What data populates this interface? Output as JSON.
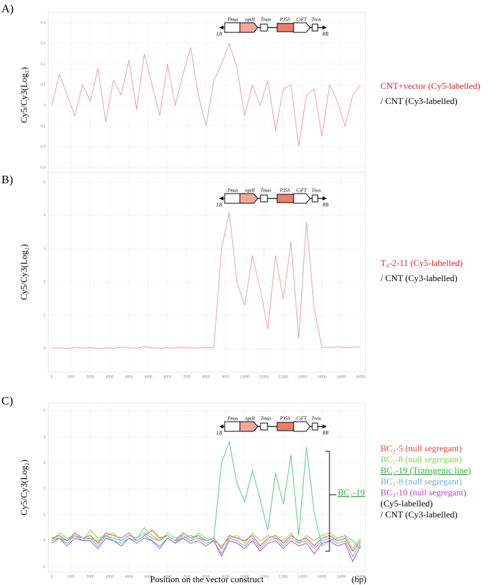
{
  "construct": {
    "labels": [
      "Pmas",
      "nptII",
      "Tmas",
      "P35S",
      "CiFT",
      "Tnos"
    ],
    "left": "LB",
    "right": "RB"
  },
  "chart_data": [
    {
      "type": "line",
      "panel_label": "A)",
      "ylabel": "Cy5/Cy3(Log₂)",
      "x": [
        0,
        400,
        800,
        1200,
        1600,
        2000,
        2400,
        2800,
        3200,
        3600,
        4000,
        4400,
        4800,
        5200,
        5600,
        6000,
        6400,
        6800,
        7200,
        7600,
        8000,
        8400,
        8800,
        9200,
        9600,
        10000,
        10400,
        10800,
        11200,
        11600,
        12000,
        12400,
        12800,
        13200,
        13600,
        14000,
        14400,
        14800,
        15200,
        15600,
        16000
      ],
      "xlim": [
        0,
        16000
      ],
      "xticks": [
        0,
        1000,
        2000,
        3000,
        4000,
        5000,
        6000,
        7000,
        8000,
        9000,
        10000,
        11000,
        12000,
        13000,
        14000,
        15000,
        16000
      ],
      "ylim": [
        -0.35,
        0.45
      ],
      "yticks": [
        -0.3,
        -0.2,
        -0.1,
        0,
        0.1,
        0.2,
        0.3,
        0.4
      ],
      "grid": true,
      "series": [
        {
          "name": "CNT+vector  (Cy5-labelled)",
          "color": "#e8a0a8",
          "legend_color": "#e8202a",
          "values": [
            0,
            0.15,
            0.05,
            -0.05,
            0.1,
            0.02,
            0.18,
            -0.08,
            0.12,
            0.05,
            0.22,
            -0.02,
            0.25,
            0.1,
            -0.05,
            0.2,
            0,
            0.15,
            0.28,
            0.05,
            -0.1,
            0.12,
            0.2,
            0.3,
            0.18,
            -0.05,
            0.1,
            0,
            0.12,
            -0.12,
            0.08,
            0.1,
            -0.2,
            0.05,
            0.08,
            -0.15,
            0.1,
            0.02,
            -0.1,
            0.05,
            0.1
          ]
        }
      ],
      "notes": [
        "/ CNT (Cy3-labelled)"
      ]
    },
    {
      "type": "line",
      "panel_label": "B)",
      "ylabel": "Cy5/Cy3(Log₂)",
      "x": [
        0,
        400,
        800,
        1200,
        1600,
        2000,
        2400,
        2800,
        3200,
        3600,
        4000,
        4400,
        4800,
        5200,
        5600,
        6000,
        6400,
        6800,
        7200,
        7600,
        8000,
        8400,
        8800,
        9200,
        9600,
        10000,
        10400,
        10800,
        11200,
        11600,
        12000,
        12400,
        12800,
        13200,
        13600,
        14000,
        14400,
        14800,
        15200,
        15600,
        16000
      ],
      "xlim": [
        0,
        16000
      ],
      "xticks": [
        0,
        1000,
        2000,
        3000,
        4000,
        5000,
        6000,
        7000,
        8000,
        9000,
        10000,
        11000,
        12000,
        13000,
        14000,
        15000,
        16000
      ],
      "ylim": [
        -0.7,
        5.3
      ],
      "yticks": [
        0,
        1,
        2,
        3,
        4,
        5
      ],
      "grid": true,
      "series": [
        {
          "name": "T₀-2-11 (Cy5-labelled)",
          "color": "#e8a0a8",
          "legend_color": "#e8202a",
          "values": [
            0.02,
            0.03,
            0.01,
            0.05,
            0.02,
            0.04,
            0.01,
            0.03,
            0.02,
            0.05,
            0.03,
            0.02,
            0.06,
            0.03,
            0.02,
            0.04,
            0.02,
            0.05,
            0.03,
            0.02,
            0.04,
            0.03,
            3,
            4.1,
            2,
            1.3,
            2.8,
            1.8,
            0.6,
            2.8,
            1.5,
            3.2,
            0.3,
            3.8,
            1.2,
            0.05,
            0.04,
            0.06,
            0.03,
            0.05,
            0.05
          ]
        }
      ],
      "notes": [
        "/ CNT (Cy3-labelled)"
      ]
    },
    {
      "type": "line",
      "panel_label": "C)",
      "ylabel": "Cy5/Cy3(Log₂)",
      "xlabel": "Position on the vector construct",
      "x_unit": "(bp)",
      "bracket_label": "BC₂-19",
      "x": [
        0,
        400,
        800,
        1200,
        1600,
        2000,
        2400,
        2800,
        3200,
        3600,
        4000,
        4400,
        4800,
        5200,
        5600,
        6000,
        6400,
        6800,
        7200,
        7600,
        8000,
        8400,
        8800,
        9200,
        9600,
        10000,
        10400,
        10800,
        11200,
        11600,
        12000,
        12400,
        12800,
        13200,
        13600,
        14000,
        14400,
        14800,
        15200,
        15600,
        16000
      ],
      "xlim": [
        0,
        16000
      ],
      "xticks": [
        0,
        1000,
        2000,
        3000,
        4000,
        5000,
        6000,
        7000,
        8000,
        9000,
        10000,
        11000,
        12000,
        13000,
        14000,
        15000,
        16000
      ],
      "ylim": [
        -1.2,
        5.3
      ],
      "yticks": [
        -1,
        0,
        1,
        2,
        3,
        4,
        5
      ],
      "grid": true,
      "series": [
        {
          "name": "BC₂-5 (null segregant)",
          "color": "#e8433a",
          "values": [
            0.1,
            0.2,
            0,
            0.3,
            0.1,
            0.2,
            -0.1,
            0.3,
            0.2,
            0.1,
            0.3,
            0,
            0.2,
            0.4,
            0.1,
            0.2,
            0,
            0.3,
            0.1,
            0.2,
            0,
            0.1,
            -0.3,
            0.2,
            0.1,
            0,
            0.2,
            -0.2,
            0.1,
            0.2,
            -0.1,
            0.2,
            0,
            0.1,
            -0.2,
            0.1,
            0.2,
            0,
            0.1,
            -0.4,
            0
          ]
        },
        {
          "name": "BC₂-8 (null segregant)",
          "color": "#7ed348",
          "values": [
            0,
            0.3,
            0.1,
            0.2,
            0,
            0.4,
            0.1,
            0.2,
            0.3,
            0,
            0.2,
            0.1,
            0.5,
            0.2,
            0,
            0.3,
            0.1,
            0.2,
            0,
            0.3,
            0.1,
            0,
            -0.2,
            0.1,
            0.2,
            -0.1,
            0.3,
            0,
            0.2,
            0.1,
            0,
            0.3,
            -0.1,
            0.2,
            0,
            0.2,
            0.3,
            0.1,
            0.2,
            -0.3,
            0.1
          ]
        },
        {
          "name": "BC₂-19 (Transgenic line)",
          "color": "#52c98a",
          "legend_color": "#2faa3a",
          "values": [
            0.1,
            0.1,
            0,
            0.2,
            0.1,
            0.1,
            0,
            0.2,
            0.1,
            0,
            0.2,
            0.1,
            0.3,
            0.1,
            0,
            0.2,
            0,
            0.1,
            0.2,
            0.1,
            0,
            0.1,
            3,
            3.8,
            2.2,
            1.5,
            2.7,
            1.6,
            0.4,
            2.6,
            1.4,
            3.3,
            0.2,
            3.6,
            1.1,
            -0.2,
            0,
            0.1,
            0.2,
            0,
            -0.3
          ]
        },
        {
          "name": "BC₃-8 (null segregant)",
          "color": "#6fa8dc",
          "values": [
            0,
            0.1,
            -0.1,
            0.2,
            0,
            0.1,
            -0.2,
            0.2,
            0,
            -0.1,
            0.1,
            0,
            0.2,
            0,
            -0.2,
            0.1,
            -0.1,
            0.2,
            0,
            0.1,
            -0.1,
            0,
            -0.5,
            0.1,
            0,
            -0.2,
            0.1,
            -0.3,
            0,
            0.1,
            -0.2,
            0.1,
            -0.1,
            0,
            -0.3,
            0,
            0.1,
            -0.1,
            0,
            -0.6,
            -0.1
          ]
        },
        {
          "name": "BC₃-10 (null segregant)",
          "color": "#b04fc9",
          "legend_color": "#c040d0",
          "values": [
            -0.1,
            0.1,
            -0.2,
            0.1,
            0,
            0,
            -0.3,
            0.1,
            0,
            -0.2,
            0.1,
            -0.1,
            0.1,
            0,
            -0.3,
            0.1,
            -0.1,
            0.1,
            -0.1,
            0,
            -0.2,
            0,
            -0.6,
            0,
            -0.1,
            -0.3,
            0,
            -0.4,
            -0.1,
            0,
            -0.3,
            0,
            -0.2,
            -0.1,
            -0.5,
            -0.1,
            0,
            -0.2,
            -0.1,
            -0.8,
            -0.2
          ]
        }
      ],
      "notes": [
        "(Cy5-labelled)",
        "/ CNT (Cy3-labelled)"
      ]
    }
  ]
}
